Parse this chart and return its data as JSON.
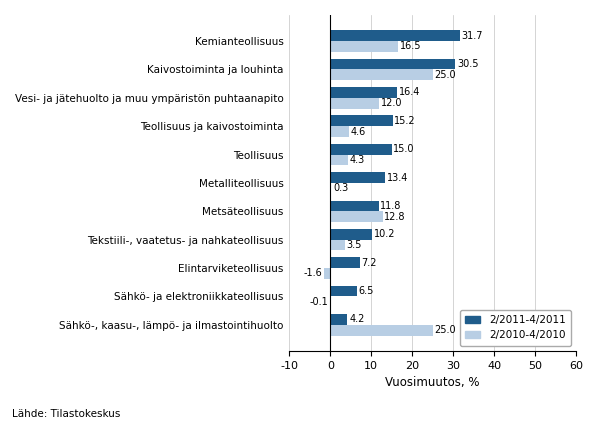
{
  "categories": [
    "Kemianteollisuus",
    "Kaivostoiminta ja louhinta",
    "Vesi- ja jätehuolto ja muu ympäristön puhtaanapito",
    "Teollisuus ja kaivostoiminta",
    "Teollisuus",
    "Metalliteollisuus",
    "Metsäteollisuus",
    "Tekstiili-, vaatetus- ja nahkateollisuus",
    "Elintarviketeollisuus",
    "Sähkö- ja elektroniikkateollisuus",
    "Sähkö-, kaasu-, lämpö- ja ilmastointihuolto"
  ],
  "series1_label": "2/2011-4/2011",
  "series2_label": "2/2010-4/2010",
  "series1_values": [
    31.7,
    30.5,
    16.4,
    15.2,
    15.0,
    13.4,
    11.8,
    10.2,
    7.2,
    6.5,
    4.2
  ],
  "series2_values": [
    16.5,
    25.0,
    12.0,
    4.6,
    4.3,
    0.3,
    12.8,
    3.5,
    -1.6,
    -0.1,
    25.0
  ],
  "series1_color": "#1F5C8B",
  "series2_color": "#B8CEE4",
  "xlabel": "Vuosimuutos, %",
  "xlim": [
    -10,
    60
  ],
  "xticks": [
    -10,
    0,
    10,
    20,
    30,
    40,
    50,
    60
  ],
  "source_text": "Lähde: Tilastokeskus",
  "background_color": "#FFFFFF",
  "bar_height": 0.38
}
